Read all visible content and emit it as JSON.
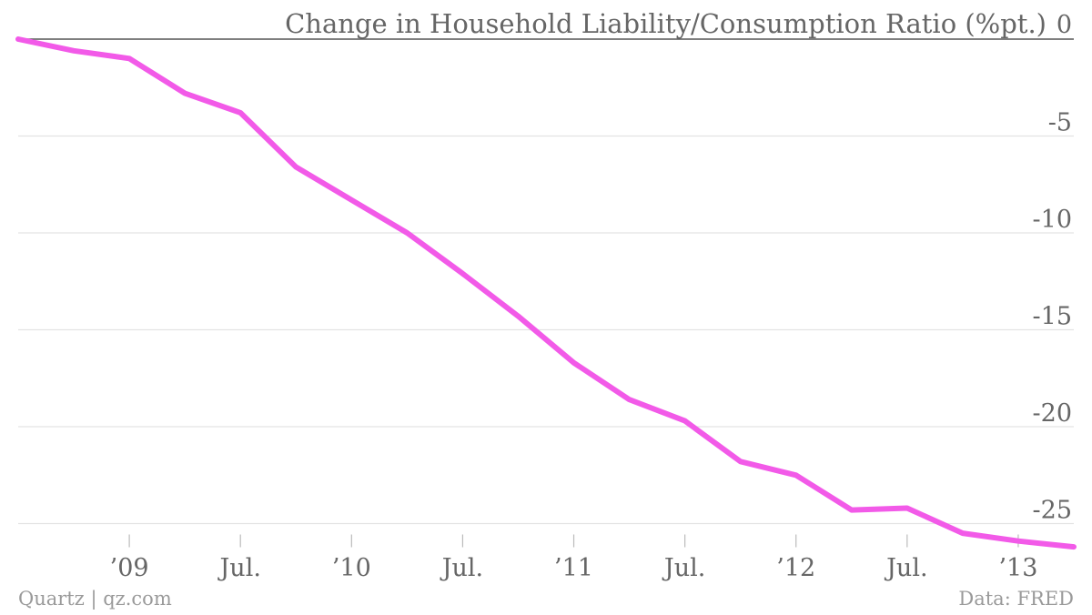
{
  "chart_data": {
    "type": "line",
    "title": "Change in Household Liability/Consumption Ratio (%pt.)",
    "xlabel": "",
    "ylabel": "",
    "ylim": [
      -26,
      0
    ],
    "yticks": [
      0,
      -5,
      -10,
      -15,
      -20,
      -25
    ],
    "ytick_labels": [
      "0",
      "-5",
      "-10",
      "-15",
      "-20",
      "-25"
    ],
    "xtick_labels": [
      "’09",
      "Jul.",
      "’10",
      "Jul.",
      "’11",
      "Jul.",
      "’12",
      "Jul.",
      "’13"
    ],
    "xtick_quarters": [
      "2009-Q1",
      "2009-Q3",
      "2010-Q1",
      "2010-Q3",
      "2011-Q1",
      "2011-Q3",
      "2012-Q1",
      "2012-Q3",
      "2013-Q1"
    ],
    "grid": true,
    "line_color": "#f25ae8",
    "x": [
      "2008-Q3",
      "2008-Q4",
      "2009-Q1",
      "2009-Q2",
      "2009-Q3",
      "2009-Q4",
      "2010-Q1",
      "2010-Q2",
      "2010-Q3",
      "2010-Q4",
      "2011-Q1",
      "2011-Q2",
      "2011-Q3",
      "2011-Q4",
      "2012-Q1",
      "2012-Q2",
      "2012-Q3",
      "2012-Q4",
      "2013-Q1",
      "2013-Q2"
    ],
    "series": [
      {
        "values": [
          0,
          -0.6,
          -1.0,
          -2.8,
          -3.8,
          -6.6,
          -8.3,
          -10.0,
          -12.1,
          -14.3,
          -16.7,
          -18.6,
          -19.7,
          -21.8,
          -22.5,
          -24.3,
          -24.2,
          -25.5,
          -25.9,
          -26.2
        ]
      }
    ]
  },
  "footer": {
    "credit": "Quartz | qz.com",
    "source": "Data: FRED"
  }
}
